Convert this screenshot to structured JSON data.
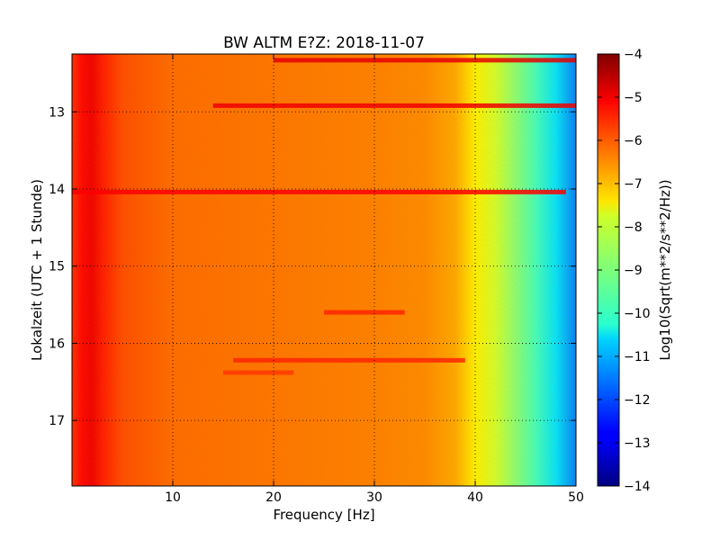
{
  "chart_data": {
    "type": "heatmap",
    "title": "BW ALTM E?Z: 2018-11-07",
    "xlabel": "Frequency [Hz]",
    "ylabel": "Lokalzeit (UTC + 1 Stunde)",
    "xlim": [
      0,
      50
    ],
    "ylim": [
      17.85,
      12.25
    ],
    "y_inverted": true,
    "x_ticks": [
      10,
      20,
      30,
      40,
      50
    ],
    "y_ticks": [
      13,
      14,
      15,
      16,
      17
    ],
    "grid": "dotted",
    "colorbar": {
      "label": "Log10(Sqrt(m**2/s**2/Hz))",
      "range": [
        -14,
        -4
      ],
      "colormap": "jet",
      "ticks": [
        -4,
        -5,
        -6,
        -7,
        -8,
        -9,
        -10,
        -11,
        -12,
        -13,
        -14
      ]
    },
    "spectrum_profile": {
      "frequency_hz": [
        0,
        1,
        2,
        3,
        5,
        10,
        20,
        30,
        35,
        38,
        40,
        42,
        44,
        46,
        48,
        49,
        50
      ],
      "level": [
        -5.7,
        -5.3,
        -5.1,
        -5.5,
        -6.0,
        -6.3,
        -6.4,
        -6.5,
        -6.6,
        -6.9,
        -7.6,
        -8.2,
        -8.9,
        -9.6,
        -10.5,
        -11.0,
        -11.5
      ]
    },
    "features": [
      {
        "kind": "band",
        "time_hour": 12.33,
        "f_start_hz": 20,
        "f_end_hz": 50,
        "level": -5.0
      },
      {
        "kind": "band",
        "time_hour": 12.92,
        "f_start_hz": 14,
        "f_end_hz": 50,
        "level": -5.1
      },
      {
        "kind": "band",
        "time_hour": 14.04,
        "f_start_hz": 0,
        "f_end_hz": 49,
        "level": -5.2
      },
      {
        "kind": "band",
        "time_hour": 15.6,
        "f_start_hz": 25,
        "f_end_hz": 33,
        "level": -5.6
      },
      {
        "kind": "band",
        "time_hour": 16.22,
        "f_start_hz": 16,
        "f_end_hz": 39,
        "level": -5.6
      },
      {
        "kind": "band",
        "time_hour": 16.38,
        "f_start_hz": 15,
        "f_end_hz": 22,
        "level": -5.8
      }
    ]
  }
}
